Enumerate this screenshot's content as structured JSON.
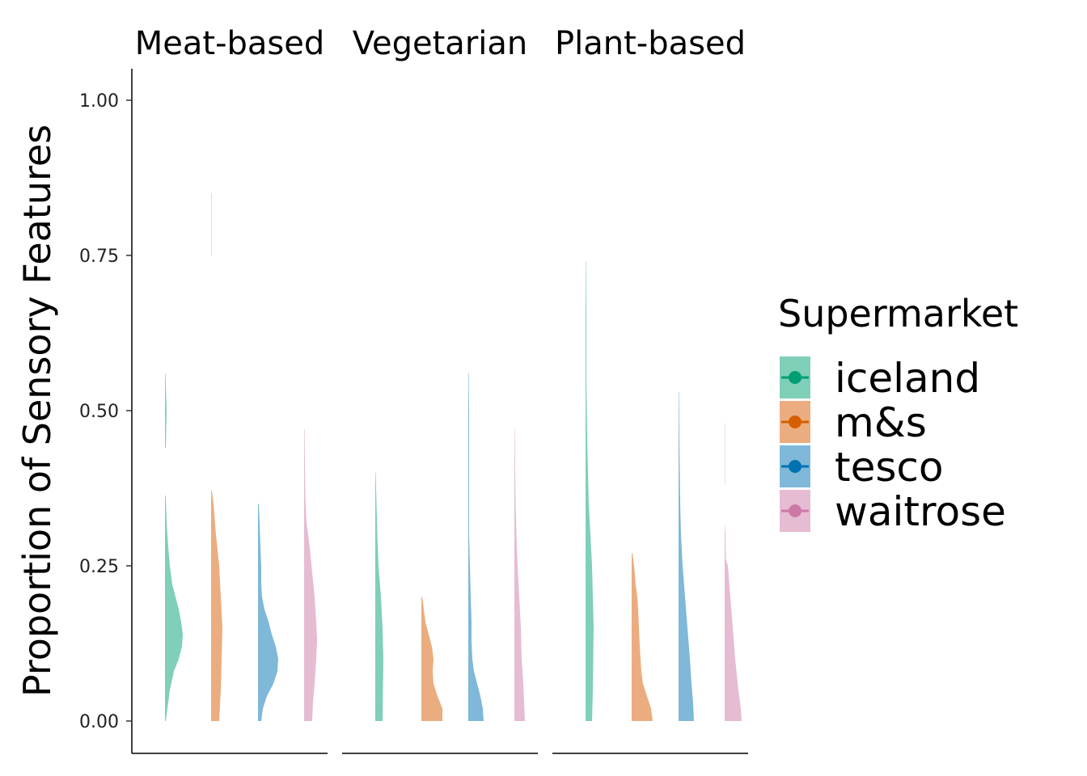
{
  "chart_data": {
    "type": "half-violin",
    "ylabel": "Proportion of Sensory Features",
    "xlabel": "",
    "ylim": [
      -0.05,
      1.05
    ],
    "yticks": [
      "0.00",
      "0.25",
      "0.50",
      "0.75",
      "1.00"
    ],
    "ytick_values": [
      0,
      0.25,
      0.5,
      0.75,
      1.0
    ],
    "facets": [
      "Meat-based",
      "Vegetarian",
      "Plant-based"
    ],
    "legend": {
      "title": "Supermarket",
      "position": "right",
      "items": [
        {
          "name": "iceland",
          "color": "#009E73",
          "fill": "#7FCFB9"
        },
        {
          "name": "m&s",
          "color": "#D55E00",
          "fill": "#EBAD7F"
        },
        {
          "name": "tesco",
          "color": "#0072B2",
          "fill": "#7FB8D8"
        },
        {
          "name": "waitrose",
          "color": "#CC79A7",
          "fill": "#E6BCD3"
        }
      ]
    },
    "series": [
      {
        "facet": "Meat-based",
        "supermarket": "iceland",
        "min": 0,
        "max": 0.56,
        "density": [
          [
            0,
            1
          ],
          [
            0.02,
            3
          ],
          [
            0.05,
            6
          ],
          [
            0.08,
            11
          ],
          [
            0.1,
            17
          ],
          [
            0.12,
            21
          ],
          [
            0.14,
            22
          ],
          [
            0.16,
            20
          ],
          [
            0.18,
            17
          ],
          [
            0.2,
            13
          ],
          [
            0.22,
            9
          ],
          [
            0.25,
            6
          ],
          [
            0.28,
            4
          ],
          [
            0.32,
            2
          ],
          [
            0.36,
            1
          ],
          [
            0.365,
            0
          ],
          [
            0.44,
            0
          ],
          [
            0.44,
            1
          ],
          [
            0.5,
            2
          ],
          [
            0.56,
            0.5
          ]
        ]
      },
      {
        "facet": "Meat-based",
        "supermarket": "m&s",
        "min": 0,
        "max": 0.85,
        "density": [
          [
            0,
            10
          ],
          [
            0.05,
            12
          ],
          [
            0.1,
            13
          ],
          [
            0.15,
            14
          ],
          [
            0.2,
            12
          ],
          [
            0.25,
            10
          ],
          [
            0.3,
            6
          ],
          [
            0.35,
            3
          ],
          [
            0.37,
            1
          ],
          [
            0.372,
            0
          ],
          [
            0.75,
            0
          ],
          [
            0.75,
            0.5
          ],
          [
            0.85,
            0.5
          ]
        ]
      },
      {
        "facet": "Meat-based",
        "supermarket": "tesco",
        "min": 0,
        "max": 0.35,
        "density": [
          [
            0,
            4
          ],
          [
            0.02,
            6
          ],
          [
            0.04,
            11
          ],
          [
            0.06,
            19
          ],
          [
            0.08,
            24
          ],
          [
            0.1,
            25
          ],
          [
            0.12,
            22
          ],
          [
            0.14,
            17
          ],
          [
            0.16,
            13
          ],
          [
            0.18,
            8
          ],
          [
            0.2,
            5
          ],
          [
            0.22,
            4
          ],
          [
            0.25,
            4
          ],
          [
            0.28,
            3
          ],
          [
            0.32,
            2
          ],
          [
            0.35,
            1
          ]
        ]
      },
      {
        "facet": "Meat-based",
        "supermarket": "waitrose",
        "min": 0,
        "max": 0.47,
        "density": [
          [
            0,
            10
          ],
          [
            0.03,
            11
          ],
          [
            0.06,
            13
          ],
          [
            0.1,
            15
          ],
          [
            0.13,
            16
          ],
          [
            0.16,
            15
          ],
          [
            0.2,
            13
          ],
          [
            0.24,
            10
          ],
          [
            0.28,
            7
          ],
          [
            0.32,
            3
          ],
          [
            0.36,
            1.5
          ],
          [
            0.42,
            1
          ],
          [
            0.47,
            0.5
          ]
        ]
      },
      {
        "facet": "Vegetarian",
        "supermarket": "iceland",
        "min": 0,
        "max": 0.4,
        "density": [
          [
            0,
            9
          ],
          [
            0.05,
            9.5
          ],
          [
            0.1,
            10
          ],
          [
            0.15,
            9
          ],
          [
            0.2,
            7
          ],
          [
            0.25,
            4
          ],
          [
            0.3,
            2.5
          ],
          [
            0.35,
            1.5
          ],
          [
            0.4,
            0.5
          ]
        ]
      },
      {
        "facet": "Vegetarian",
        "supermarket": "m&s",
        "min": 0,
        "max": 0.2,
        "density": [
          [
            0,
            26
          ],
          [
            0.02,
            26
          ],
          [
            0.04,
            20
          ],
          [
            0.06,
            15
          ],
          [
            0.08,
            14
          ],
          [
            0.1,
            15
          ],
          [
            0.12,
            13
          ],
          [
            0.14,
            9
          ],
          [
            0.16,
            5
          ],
          [
            0.18,
            3
          ],
          [
            0.2,
            1
          ]
        ]
      },
      {
        "facet": "Vegetarian",
        "supermarket": "tesco",
        "min": 0,
        "max": 0.56,
        "density": [
          [
            0,
            19
          ],
          [
            0.02,
            18
          ],
          [
            0.04,
            15
          ],
          [
            0.06,
            11
          ],
          [
            0.08,
            7
          ],
          [
            0.1,
            5
          ],
          [
            0.13,
            4
          ],
          [
            0.16,
            4
          ],
          [
            0.2,
            3
          ],
          [
            0.25,
            2
          ],
          [
            0.3,
            1
          ],
          [
            0.35,
            1
          ],
          [
            0.4,
            1
          ],
          [
            0.5,
            1
          ],
          [
            0.56,
            0.5
          ]
        ]
      },
      {
        "facet": "Vegetarian",
        "supermarket": "waitrose",
        "min": 0,
        "max": 0.47,
        "density": [
          [
            0,
            13
          ],
          [
            0.03,
            12
          ],
          [
            0.06,
            11
          ],
          [
            0.1,
            9
          ],
          [
            0.15,
            8
          ],
          [
            0.2,
            6
          ],
          [
            0.25,
            4
          ],
          [
            0.3,
            2.5
          ],
          [
            0.35,
            1.5
          ],
          [
            0.4,
            1
          ],
          [
            0.47,
            0.5
          ]
        ]
      },
      {
        "facet": "Plant-based",
        "supermarket": "iceland",
        "min": 0,
        "max": 0.74,
        "density": [
          [
            0,
            8
          ],
          [
            0.05,
            9
          ],
          [
            0.1,
            9.5
          ],
          [
            0.15,
            10
          ],
          [
            0.2,
            9
          ],
          [
            0.25,
            8
          ],
          [
            0.3,
            6
          ],
          [
            0.35,
            4
          ],
          [
            0.4,
            3
          ],
          [
            0.45,
            2
          ],
          [
            0.5,
            1.5
          ],
          [
            0.55,
            1
          ],
          [
            0.6,
            1
          ],
          [
            0.65,
            1
          ],
          [
            0.74,
            0.5
          ]
        ]
      },
      {
        "facet": "Plant-based",
        "supermarket": "m&s",
        "min": 0,
        "max": 0.27,
        "density": [
          [
            0,
            26
          ],
          [
            0.02,
            24
          ],
          [
            0.04,
            19
          ],
          [
            0.06,
            14
          ],
          [
            0.08,
            12
          ],
          [
            0.1,
            11
          ],
          [
            0.12,
            10
          ],
          [
            0.15,
            9
          ],
          [
            0.18,
            8
          ],
          [
            0.2,
            7
          ],
          [
            0.22,
            5
          ],
          [
            0.25,
            3
          ],
          [
            0.27,
            1
          ]
        ]
      },
      {
        "facet": "Plant-based",
        "supermarket": "tesco",
        "min": 0,
        "max": 0.53,
        "density": [
          [
            0,
            19
          ],
          [
            0.03,
            18
          ],
          [
            0.06,
            16
          ],
          [
            0.1,
            14
          ],
          [
            0.15,
            11
          ],
          [
            0.2,
            8
          ],
          [
            0.25,
            5
          ],
          [
            0.3,
            3
          ],
          [
            0.35,
            2
          ],
          [
            0.4,
            1.5
          ],
          [
            0.45,
            1
          ],
          [
            0.53,
            0.5
          ]
        ]
      },
      {
        "facet": "Plant-based",
        "supermarket": "waitrose",
        "min": 0,
        "max": 0.48,
        "density": [
          [
            0,
            21
          ],
          [
            0.02,
            20
          ],
          [
            0.05,
            17
          ],
          [
            0.1,
            13
          ],
          [
            0.15,
            10
          ],
          [
            0.2,
            7
          ],
          [
            0.25,
            4
          ],
          [
            0.26,
            1.5
          ],
          [
            0.3,
            1
          ],
          [
            0.32,
            0
          ],
          [
            0.38,
            0
          ],
          [
            0.38,
            0.5
          ],
          [
            0.48,
            0.5
          ]
        ]
      }
    ]
  }
}
